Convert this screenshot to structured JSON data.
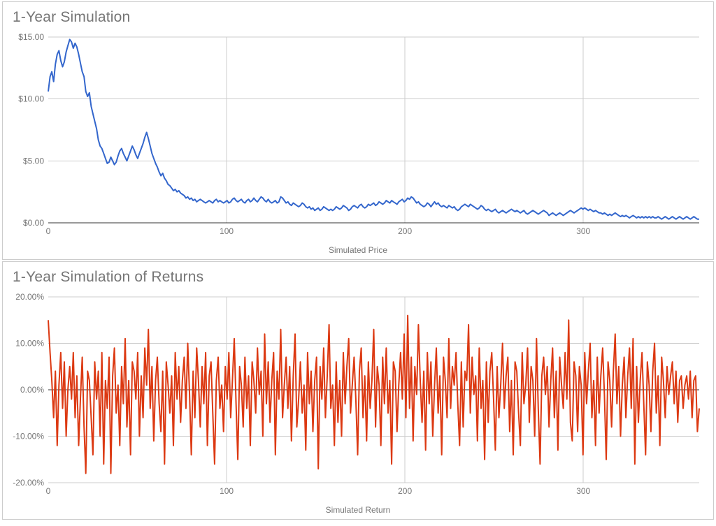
{
  "background_color": "#ffffff",
  "panel_border_color": "#cccccc",
  "grid_color": "#cccccc",
  "axis_color": "#333333",
  "label_color": "#757575",
  "title_fontsize": 21,
  "label_fontsize": 12,
  "chart1": {
    "title": "1-Year Simulation",
    "type": "line",
    "xlabel": "Simulated Price",
    "x_ticks": [
      0,
      100,
      200,
      300
    ],
    "y_ticks": [
      0,
      5,
      10,
      15
    ],
    "y_tick_labels": [
      "$0.00",
      "$5.00",
      "$10.00",
      "$15.00"
    ],
    "xlim": [
      0,
      365
    ],
    "ylim": [
      0,
      15
    ],
    "line_color": "#3366cc",
    "line_width": 2.0,
    "values": [
      10.6,
      11.8,
      12.2,
      11.4,
      12.8,
      13.6,
      13.9,
      13.1,
      12.6,
      13.0,
      13.8,
      14.3,
      14.8,
      14.6,
      14.1,
      14.5,
      14.2,
      13.6,
      12.9,
      12.2,
      11.8,
      10.6,
      10.2,
      10.5,
      9.4,
      8.8,
      8.2,
      7.6,
      6.7,
      6.2,
      6.0,
      5.6,
      5.2,
      4.8,
      4.9,
      5.3,
      5.0,
      4.7,
      4.9,
      5.4,
      5.8,
      6.0,
      5.6,
      5.3,
      5.0,
      5.4,
      5.8,
      6.2,
      5.9,
      5.5,
      5.2,
      5.6,
      6.0,
      6.4,
      6.9,
      7.3,
      6.8,
      6.2,
      5.6,
      5.2,
      4.8,
      4.5,
      4.1,
      3.8,
      4.0,
      3.6,
      3.4,
      3.1,
      3.0,
      2.8,
      2.6,
      2.7,
      2.5,
      2.6,
      2.4,
      2.3,
      2.2,
      2.0,
      2.1,
      1.9,
      2.0,
      1.8,
      1.9,
      1.7,
      1.8,
      1.9,
      1.8,
      1.7,
      1.6,
      1.7,
      1.8,
      1.7,
      1.6,
      1.8,
      1.9,
      1.7,
      1.8,
      1.7,
      1.6,
      1.7,
      1.8,
      1.6,
      1.7,
      1.9,
      2.0,
      1.8,
      1.7,
      1.8,
      1.9,
      1.7,
      1.6,
      1.8,
      1.9,
      1.7,
      1.8,
      2.0,
      1.8,
      1.7,
      1.9,
      2.1,
      2.0,
      1.8,
      1.7,
      1.9,
      1.7,
      1.6,
      1.7,
      1.8,
      1.6,
      1.7,
      2.1,
      2.0,
      1.8,
      1.6,
      1.7,
      1.5,
      1.4,
      1.6,
      1.5,
      1.4,
      1.3,
      1.4,
      1.6,
      1.5,
      1.3,
      1.2,
      1.3,
      1.1,
      1.2,
      1.0,
      1.1,
      1.2,
      1.0,
      1.1,
      1.3,
      1.2,
      1.1,
      1.0,
      1.1,
      1.0,
      1.1,
      1.3,
      1.2,
      1.1,
      1.2,
      1.4,
      1.3,
      1.2,
      1.0,
      1.1,
      1.3,
      1.4,
      1.3,
      1.2,
      1.4,
      1.5,
      1.3,
      1.2,
      1.3,
      1.5,
      1.4,
      1.5,
      1.6,
      1.4,
      1.5,
      1.7,
      1.6,
      1.5,
      1.6,
      1.8,
      1.7,
      1.6,
      1.8,
      1.7,
      1.6,
      1.5,
      1.7,
      1.8,
      1.9,
      1.7,
      1.8,
      2.0,
      1.9,
      2.1,
      2.0,
      1.8,
      1.6,
      1.7,
      1.5,
      1.4,
      1.3,
      1.4,
      1.6,
      1.5,
      1.3,
      1.5,
      1.7,
      1.5,
      1.6,
      1.4,
      1.3,
      1.4,
      1.3,
      1.2,
      1.4,
      1.3,
      1.2,
      1.3,
      1.1,
      1.0,
      1.1,
      1.3,
      1.4,
      1.5,
      1.4,
      1.3,
      1.5,
      1.4,
      1.3,
      1.2,
      1.1,
      1.2,
      1.4,
      1.3,
      1.1,
      1.0,
      1.1,
      1.0,
      0.9,
      1.0,
      1.1,
      0.9,
      0.8,
      0.9,
      1.0,
      0.9,
      0.8,
      0.9,
      1.0,
      1.1,
      1.0,
      0.9,
      1.0,
      0.9,
      0.8,
      0.9,
      1.0,
      0.8,
      0.7,
      0.8,
      0.9,
      1.0,
      0.9,
      0.8,
      0.7,
      0.8,
      0.9,
      1.0,
      0.9,
      0.8,
      0.6,
      0.7,
      0.8,
      0.7,
      0.6,
      0.7,
      0.8,
      0.7,
      0.6,
      0.7,
      0.8,
      0.9,
      1.0,
      0.9,
      0.8,
      0.9,
      1.0,
      1.1,
      1.2,
      1.1,
      1.2,
      1.1,
      1.0,
      1.1,
      1.0,
      0.9,
      1.0,
      0.9,
      0.8,
      0.8,
      0.7,
      0.8,
      0.7,
      0.6,
      0.7,
      0.6,
      0.7,
      0.8,
      0.7,
      0.6,
      0.5,
      0.6,
      0.5,
      0.6,
      0.5,
      0.4,
      0.5,
      0.6,
      0.5,
      0.4,
      0.5,
      0.4,
      0.5,
      0.4,
      0.5,
      0.4,
      0.5,
      0.4,
      0.5,
      0.4,
      0.4,
      0.5,
      0.4,
      0.3,
      0.4,
      0.5,
      0.4,
      0.3,
      0.4,
      0.5,
      0.4,
      0.3,
      0.4,
      0.5,
      0.4,
      0.3,
      0.4,
      0.5,
      0.4,
      0.3,
      0.4,
      0.5,
      0.4,
      0.3,
      0.3
    ]
  },
  "chart2": {
    "title": "1-Year Simulation of Returns",
    "type": "line",
    "xlabel": "Simulated Return",
    "x_ticks": [
      0,
      100,
      200,
      300
    ],
    "y_ticks": [
      -20,
      -10,
      0,
      10,
      20
    ],
    "y_tick_labels": [
      "-20.00%",
      "-10.00%",
      "0.00%",
      "10.00%",
      "20.00%"
    ],
    "xlim": [
      0,
      365
    ],
    "ylim": [
      -20,
      20
    ],
    "line_color": "#dc3912",
    "line_width": 2.0,
    "values": [
      15.0,
      8.0,
      2.0,
      -6.0,
      4.0,
      -12.0,
      1.0,
      8.0,
      -4.0,
      6.0,
      -10.0,
      0.0,
      5.0,
      -2.0,
      8.0,
      -6.0,
      3.0,
      -12.0,
      -2.0,
      7.0,
      -8.0,
      -18.0,
      4.0,
      2.0,
      -6.0,
      -14.0,
      6.0,
      -2.0,
      4.0,
      -10.0,
      8.0,
      -16.0,
      2.0,
      -4.0,
      7.0,
      -18.0,
      3.0,
      9.0,
      -5.0,
      1.0,
      -12.0,
      5.0,
      -3.0,
      11.0,
      -8.0,
      2.0,
      -14.0,
      6.0,
      4.0,
      -2.0,
      8.0,
      -10.0,
      3.0,
      -6.0,
      9.0,
      1.0,
      13.0,
      -4.0,
      5.0,
      -11.0,
      2.0,
      7.0,
      -3.0,
      -9.0,
      4.0,
      -16.0,
      6.0,
      1.0,
      -5.0,
      3.0,
      -12.0,
      8.0,
      -2.0,
      5.0,
      -7.0,
      2.0,
      7.0,
      -4.0,
      10.0,
      -1.0,
      -14.0,
      4.0,
      -6.0,
      9.0,
      2.0,
      -8.0,
      5.0,
      -3.0,
      8.0,
      -12.0,
      3.0,
      6.0,
      -5.0,
      -16.0,
      2.0,
      7.0,
      -4.0,
      1.0,
      -9.0,
      5.0,
      -2.0,
      8.0,
      -6.0,
      2.0,
      11.0,
      -3.0,
      -15.0,
      5.0,
      1.0,
      -8.0,
      7.0,
      -4.0,
      3.0,
      -12.0,
      6.0,
      2.0,
      -5.0,
      9.0,
      -1.0,
      4.0,
      -10.0,
      12.0,
      -3.0,
      6.0,
      -7.0,
      2.0,
      8.0,
      -14.0,
      4.0,
      -2.0,
      13.0,
      -6.0,
      1.0,
      7.0,
      -4.0,
      5.0,
      -11.0,
      3.0,
      12.0,
      -8.0,
      -2.0,
      6.0,
      -5.0,
      1.0,
      -13.0,
      8.0,
      -3.0,
      4.0,
      -9.0,
      2.0,
      7.0,
      -17.0,
      5.0,
      -2.0,
      9.0,
      -6.0,
      3.0,
      14.0,
      -4.0,
      1.0,
      -12.0,
      6.0,
      -7.0,
      2.0,
      -10.0,
      8.0,
      -3.0,
      5.0,
      11.0,
      -5.0,
      1.0,
      7.0,
      -2.0,
      -14.0,
      4.0,
      9.0,
      -6.0,
      3.0,
      -11.0,
      6.0,
      -4.0,
      2.0,
      13.0,
      -8.0,
      5.0,
      1.0,
      -12.0,
      7.0,
      -3.0,
      9.0,
      -5.0,
      2.0,
      -16.0,
      6.0,
      4.0,
      -9.0,
      1.0,
      8.0,
      -2.0,
      12.0,
      -6.0,
      16.0,
      -4.0,
      7.0,
      -11.0,
      5.0,
      -1.0,
      14.0,
      2.0,
      -7.0,
      4.0,
      -13.0,
      8.0,
      -3.0,
      6.0,
      -10.0,
      1.0,
      9.0,
      -5.0,
      3.0,
      -14.0,
      7.0,
      2.0,
      -6.0,
      11.0,
      -4.0,
      5.0,
      1.0,
      8.0,
      -3.0,
      -12.0,
      6.0,
      -8.0,
      4.0,
      2.0,
      14.0,
      -5.0,
      7.0,
      -1.0,
      3.0,
      -11.0,
      9.0,
      -4.0,
      2.0,
      -15.0,
      6.0,
      -7.0,
      4.0,
      8.0,
      -2.0,
      -13.0,
      5.0,
      -6.0,
      1.0,
      10.0,
      -4.0,
      3.0,
      7.0,
      -9.0,
      2.0,
      -14.0,
      6.0,
      4.0,
      -5.0,
      -12.0,
      8.0,
      -3.0,
      1.0,
      9.0,
      -7.0,
      5.0,
      2.0,
      -10.0,
      11.0,
      -4.0,
      -16.0,
      3.0,
      7.0,
      -1.0,
      5.0,
      -8.0,
      2.0,
      9.0,
      -6.0,
      4.0,
      -13.0,
      7.0,
      1.0,
      -4.0,
      8.0,
      -2.0,
      15.0,
      -7.0,
      -11.0,
      6.0,
      3.0,
      -9.0,
      5.0,
      1.0,
      -14.0,
      8.0,
      -3.0,
      4.0,
      10.0,
      -6.0,
      2.0,
      -12.0,
      7.0,
      -5.0,
      3.0,
      9.0,
      -1.0,
      -15.0,
      6.0,
      2.0,
      -8.0,
      4.0,
      12.0,
      -3.0,
      5.0,
      -10.0,
      1.0,
      7.0,
      -6.0,
      3.0,
      9.0,
      -4.0,
      11.0,
      -16.0,
      5.0,
      -7.0,
      2.0,
      8.0,
      -3.0,
      -14.0,
      6.0,
      1.0,
      -9.0,
      4.0,
      10.0,
      -5.0,
      3.0,
      -12.0,
      7.0,
      2.0,
      -6.0,
      5.0,
      -1.0,
      3.0,
      6.0,
      -3.0,
      4.0,
      -7.0,
      2.0,
      3.0,
      -4.0,
      1.0,
      3.0,
      -2.0,
      4.0,
      -6.0,
      2.0,
      3.0,
      -9.0,
      -4.0
    ]
  }
}
